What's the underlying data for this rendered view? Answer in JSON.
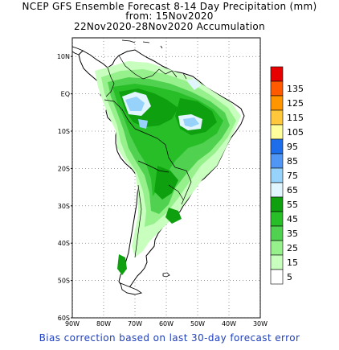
{
  "title": {
    "line1": "NCEP GFS Ensemble Forecast 8-14 Day Precipitation (mm)",
    "line2": "from: 15Nov2020",
    "line3": "22Nov2020-28Nov2020 Accumulation"
  },
  "footer": "Bias correction based on last 30-day forecast error",
  "axes": {
    "lat_labels": [
      "10N",
      "EQ",
      "10S",
      "20S",
      "30S",
      "40S",
      "50S",
      "60S"
    ],
    "lon_labels": [
      "90W",
      "80W",
      "70W",
      "60W",
      "50W",
      "40W",
      "30W"
    ],
    "lat_range": [
      -60,
      15
    ],
    "lon_range": [
      -90,
      -30
    ],
    "grid": "dotted"
  },
  "legend": {
    "placement": "right",
    "items": [
      {
        "label": "",
        "color": "#e60000"
      },
      {
        "label": "135",
        "color": "#ff5a00"
      },
      {
        "label": "125",
        "color": "#ff9600"
      },
      {
        "label": "115",
        "color": "#ffc83c"
      },
      {
        "label": "105",
        "color": "#ffff9b"
      },
      {
        "label": "95",
        "color": "#1e6eeb"
      },
      {
        "label": "85",
        "color": "#5096f5"
      },
      {
        "label": "75",
        "color": "#96d2fa"
      },
      {
        "label": "65",
        "color": "#e1f5ff"
      },
      {
        "label": "55",
        "color": "#0fa00f"
      },
      {
        "label": "45",
        "color": "#28be28"
      },
      {
        "label": "35",
        "color": "#50d250"
      },
      {
        "label": "25",
        "color": "#96f08c"
      },
      {
        "label": "15",
        "color": "#c8ffbe"
      },
      {
        "label": "5",
        "color": "#ffffff"
      }
    ]
  },
  "colors": {
    "land": "#ffffff",
    "outline": "#000000",
    "footer_text": "#1f3fbf"
  }
}
